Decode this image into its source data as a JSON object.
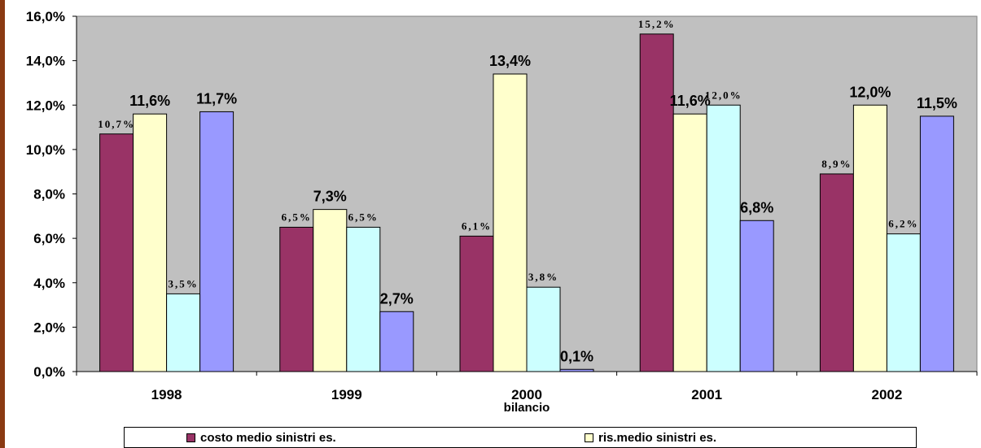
{
  "chart_data": {
    "type": "bar",
    "categories": [
      "1998",
      "1999",
      "2000",
      "2001",
      "2002"
    ],
    "xlabel": "bilancio",
    "ylim": [
      0,
      16
    ],
    "y_ticks": [
      "0,0%",
      "2,0%",
      "4,0%",
      "6,0%",
      "8,0%",
      "10,0%",
      "12,0%",
      "14,0%",
      "16,0%"
    ],
    "grid": false,
    "legend_position": "bottom",
    "series": [
      {
        "name": "costo medio sinistri es.",
        "color": "#993366",
        "values": [
          10.7,
          6.5,
          6.1,
          15.2,
          8.9
        ],
        "labels": [
          "10,7%",
          "6,5%",
          "6,1%",
          "15,2%",
          "8,9%"
        ]
      },
      {
        "name": "ris.medio sinistri es.",
        "color": "#ffffcc",
        "values": [
          11.6,
          7.3,
          13.4,
          11.6,
          12.0
        ],
        "labels": [
          "11,6%",
          "7,3%",
          "13,4%",
          "11,6%",
          "12,0%"
        ]
      },
      {
        "name": "",
        "color": "#ccffff",
        "values": [
          3.5,
          6.5,
          3.8,
          12.0,
          6.2
        ],
        "labels": [
          "3,5%",
          "6,5%",
          "3,8%",
          "12,0%",
          "6,2%"
        ]
      },
      {
        "name": "",
        "color": "#9999ff",
        "values": [
          11.7,
          2.7,
          0.1,
          6.8,
          11.5
        ],
        "labels": [
          "11,7%",
          "2,7%",
          "0,1%",
          "6,8%",
          "11,5%"
        ]
      }
    ],
    "plot_background": "#c0c0c0"
  }
}
